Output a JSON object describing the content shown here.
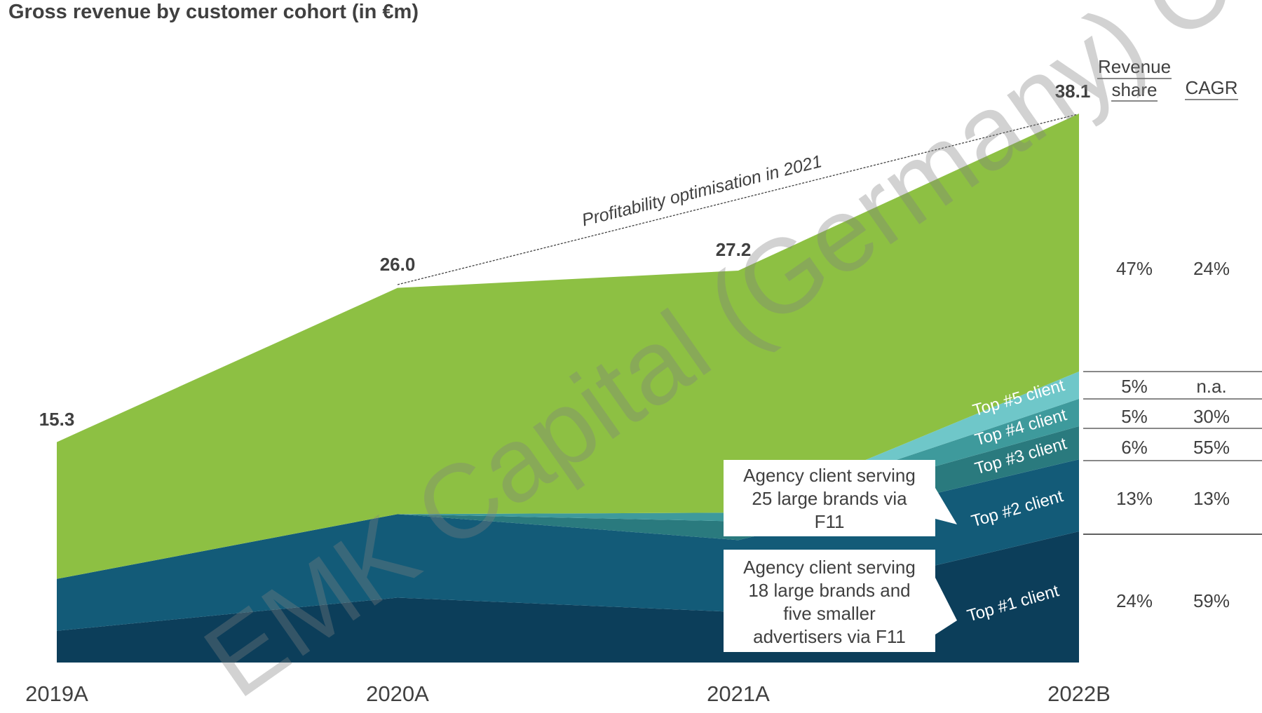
{
  "title": "Gross revenue by customer cohort (in €m)",
  "colors": {
    "other": "#8DC043",
    "top5": "#6FC7C9",
    "top4": "#3E9A9C",
    "top3": "#2A7A7E",
    "top2": "#135B78",
    "top1": "#0C3E5A"
  },
  "chart_data": {
    "type": "area",
    "stacked": true,
    "categories": [
      "2019A",
      "2020A",
      "2021A",
      "2022B"
    ],
    "totals": [
      15.3,
      26.0,
      27.2,
      38.1
    ],
    "ylim": [
      0,
      38.1
    ],
    "series": [
      {
        "key": "top1",
        "name": "Top #1 client",
        "values": [
          2.2,
          4.5,
          3.5,
          9.1
        ]
      },
      {
        "key": "top2",
        "name": "Top #2 client",
        "values": [
          3.6,
          5.8,
          5.0,
          5.0
        ]
      },
      {
        "key": "top3",
        "name": "Top #3 client",
        "values": [
          0.0,
          0.0,
          1.3,
          2.3
        ]
      },
      {
        "key": "top4",
        "name": "Top #4 client",
        "values": [
          0.0,
          0.0,
          0.6,
          1.9
        ]
      },
      {
        "key": "top5",
        "name": "Top #5 client",
        "values": [
          0.0,
          0.0,
          0.0,
          1.9
        ]
      },
      {
        "key": "other",
        "name": "",
        "values": [
          9.5,
          15.7,
          16.8,
          17.9
        ]
      }
    ]
  },
  "table": {
    "header_share": "Revenue share",
    "header_share_l1": "Revenue",
    "header_share_l2": "share",
    "header_cagr": "CAGR",
    "rows": [
      {
        "share": "47%",
        "cagr": "24%"
      },
      {
        "share": "5%",
        "cagr": "n.a."
      },
      {
        "share": "5%",
        "cagr": "30%"
      },
      {
        "share": "6%",
        "cagr": "55%"
      },
      {
        "share": "13%",
        "cagr": "13%"
      },
      {
        "share": "24%",
        "cagr": "59%"
      }
    ]
  },
  "annotations": {
    "profitability": "Profitability optimisation in 2021",
    "callout_top": [
      "Agency client serving",
      "25 large brands via",
      "F11"
    ],
    "callout_bottom": [
      "Agency client serving",
      "18 large brands and",
      "five smaller",
      "advertisers via F11"
    ]
  },
  "watermark": "EMK Capital (Germany) C"
}
